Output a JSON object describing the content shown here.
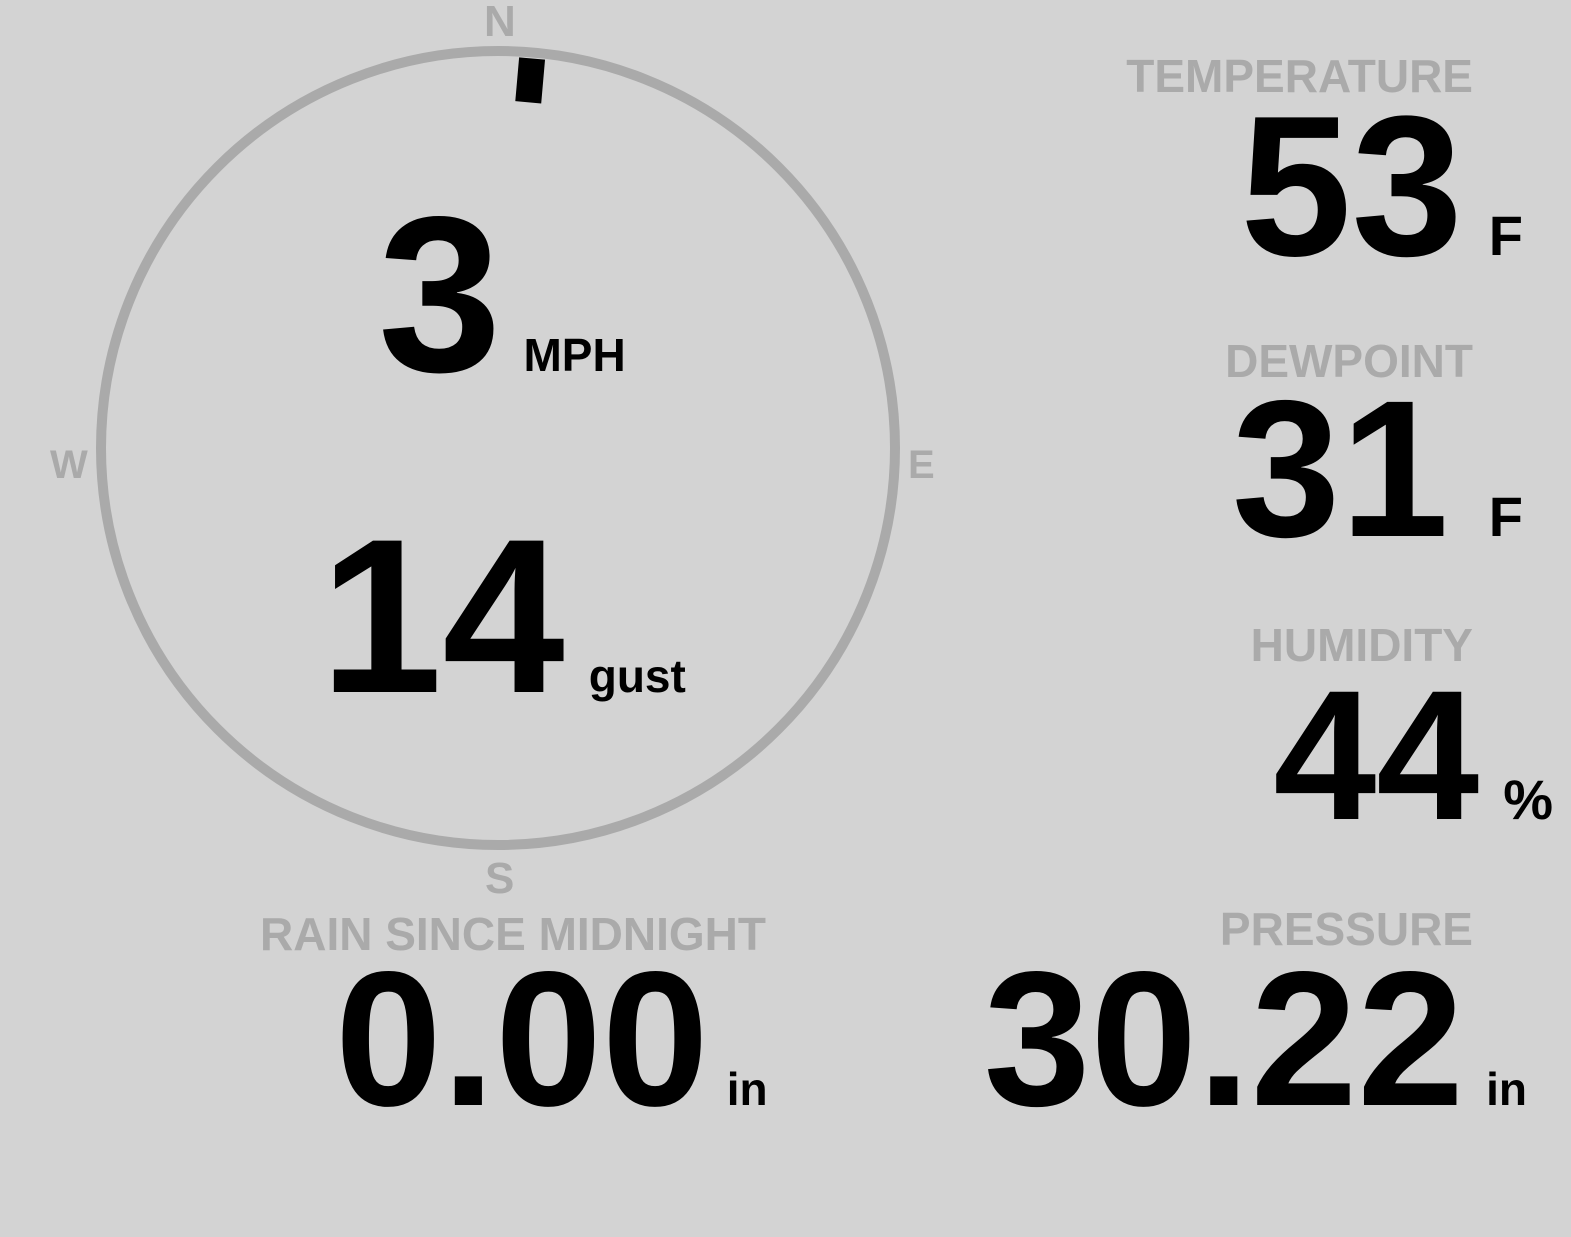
{
  "colors": {
    "background": "#d3d3d3",
    "label": "#aaaaaa",
    "value": "#000000",
    "dial": "#aaaaaa",
    "needle": "#000000"
  },
  "wind": {
    "direction_deg": 5,
    "speed": "3",
    "speed_unit": "MPH",
    "gust": "14",
    "gust_unit": "gust",
    "compass": {
      "n": "N",
      "e": "E",
      "s": "S",
      "w": "W"
    }
  },
  "temperature": {
    "label": "TEMPERATURE",
    "value": "53",
    "unit": "F"
  },
  "dewpoint": {
    "label": "DEWPOINT",
    "value": "31",
    "unit": "F"
  },
  "humidity": {
    "label": "HUMIDITY",
    "value": "44",
    "unit": "%"
  },
  "rain": {
    "label": "RAIN SINCE MIDNIGHT",
    "value": "0.00",
    "unit": "in"
  },
  "pressure": {
    "label": "PRESSURE",
    "value": "30.22",
    "unit": "in"
  }
}
